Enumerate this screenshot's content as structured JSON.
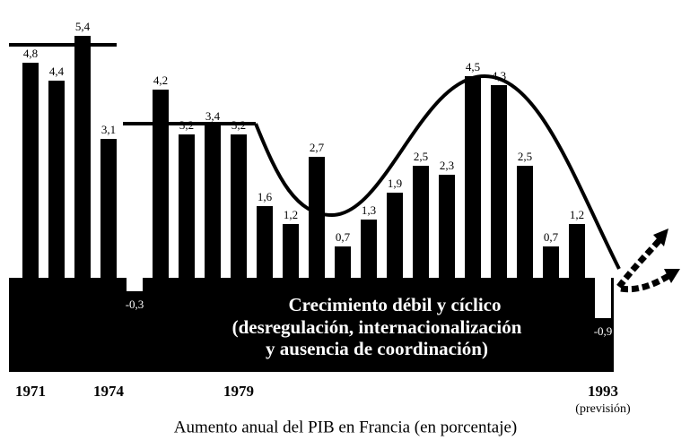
{
  "chart_data": {
    "type": "bar",
    "categories": [
      "1971",
      null,
      null,
      "1974",
      null,
      null,
      null,
      null,
      "1979",
      null,
      null,
      null,
      null,
      null,
      null,
      null,
      null,
      null,
      null,
      null,
      null,
      null,
      "1993"
    ],
    "values": [
      4.8,
      4.4,
      5.4,
      3.1,
      -0.3,
      4.2,
      3.2,
      3.4,
      3.2,
      1.6,
      1.2,
      2.7,
      0.7,
      1.3,
      1.9,
      2.5,
      2.3,
      4.5,
      4.3,
      2.5,
      0.7,
      1.2,
      -0.9
    ],
    "value_labels": [
      "4,8",
      "4,4",
      "5,4",
      "3,1",
      "-0,3",
      "4,2",
      "3,2",
      "3,4",
      "3,2",
      "1,6",
      "1,2",
      "2,7",
      "0,7",
      "1,3",
      "1,9",
      "2,5",
      "2,3",
      "4,5",
      "4,3",
      "2,5",
      "0,7",
      "1,2",
      "-0,9"
    ],
    "color": "#000000",
    "negative_color": "#ffffff",
    "ylim": [
      -2.2,
      5.6
    ],
    "annotation": "(previsión)",
    "band_text": [
      "Crecimiento débil y cíclico",
      "(desregulación, internacionalización",
      "y ausencia de coordinación)"
    ],
    "x_label": "Aumento anual del PIB en Francia (en porcentaje)"
  }
}
